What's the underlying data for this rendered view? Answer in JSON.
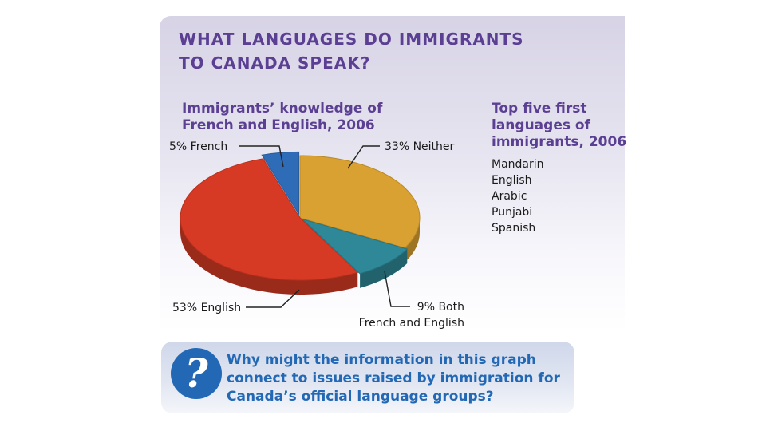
{
  "title": {
    "lines": [
      "WHAT LANGUAGES DO IMMIGRANTS",
      "TO CANADA SPEAK?"
    ]
  },
  "chart_data": {
    "type": "pie",
    "title": "Immigrants’ knowledge of French and English, 2006",
    "slices": [
      {
        "label": "5% French",
        "value": 5,
        "color": "#2f6cb8"
      },
      {
        "label": "33% Neither",
        "value": 33,
        "color": "#d9a132"
      },
      {
        "label": "9% Both",
        "label_line2": "French and English",
        "value": 9,
        "color": "#2e8898"
      },
      {
        "label": "53% English",
        "value": 53,
        "color": "#d63a24"
      }
    ]
  },
  "sidebar": {
    "heading": "Top five first languages of immigrants, 2006",
    "languages": [
      "Mandarin",
      "English",
      "Arabic",
      "Punjabi",
      "Spanish"
    ]
  },
  "question": {
    "icon": "question-mark-icon",
    "mark": "?",
    "text": "Why might the information in this graph connect to issues raised by immigration for Canada’s official language groups?"
  }
}
